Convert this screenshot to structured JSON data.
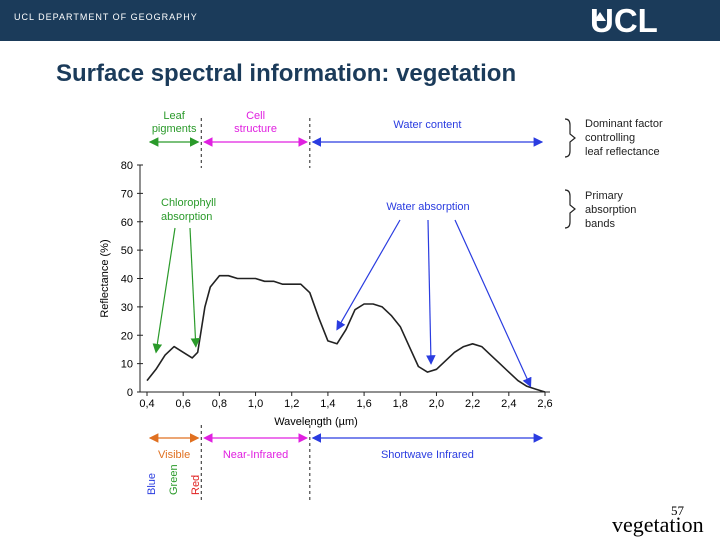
{
  "header": {
    "department": "UCL DEPARTMENT OF GEOGRAPHY",
    "logo": "UCL"
  },
  "title": "Surface spectral information: vegetation",
  "footer": {
    "page_number": "57",
    "word": "vegetation"
  },
  "colors": {
    "header_bg": "#1b3b5a",
    "green": "#2a9a2a",
    "magenta": "#e020e0",
    "blue": "#2a3ce0",
    "orange": "#e07020",
    "red": "#e02020",
    "curve": "#222222"
  },
  "chart_data": {
    "type": "line",
    "title": "",
    "xlabel": "Wavelength (µm)",
    "ylabel": "Reflectance (%)",
    "xlim": [
      0.4,
      2.6
    ],
    "ylim": [
      0,
      80
    ],
    "x_ticks": [
      "0,4",
      "0,6",
      "0,8",
      "1,0",
      "1,2",
      "1,4",
      "1,6",
      "1,8",
      "2,0",
      "2,2",
      "2,4",
      "2,6"
    ],
    "y_ticks": [
      "0",
      "10",
      "20",
      "30",
      "40",
      "50",
      "60",
      "70",
      "80"
    ],
    "series": [
      {
        "name": "Vegetation reflectance",
        "x": [
          0.4,
          0.45,
          0.5,
          0.55,
          0.6,
          0.65,
          0.68,
          0.7,
          0.72,
          0.75,
          0.8,
          0.85,
          0.9,
          1.0,
          1.05,
          1.1,
          1.15,
          1.2,
          1.25,
          1.3,
          1.35,
          1.4,
          1.45,
          1.5,
          1.55,
          1.6,
          1.65,
          1.7,
          1.75,
          1.8,
          1.85,
          1.9,
          1.95,
          2.0,
          2.05,
          2.1,
          2.15,
          2.2,
          2.25,
          2.3,
          2.35,
          2.4,
          2.45,
          2.5,
          2.55,
          2.6
        ],
        "y": [
          4,
          8,
          13,
          16,
          14,
          12,
          14,
          22,
          30,
          37,
          41,
          41,
          40,
          40,
          39,
          39,
          38,
          38,
          38,
          35,
          26,
          18,
          17,
          22,
          29,
          31,
          31,
          30,
          27,
          23,
          16,
          9,
          7,
          8,
          11,
          14,
          16,
          17,
          16,
          13,
          10,
          7,
          4,
          2,
          1,
          0
        ]
      }
    ],
    "top_regions": [
      {
        "label": "Leaf\npigments",
        "from": 0.4,
        "to": 0.7,
        "color": "green"
      },
      {
        "label": "Cell\nstructure",
        "from": 0.7,
        "to": 1.3,
        "color": "magenta"
      },
      {
        "label": "Water content",
        "from": 1.3,
        "to": 2.6,
        "color": "blue"
      }
    ],
    "bottom_regions": [
      {
        "label": "Visible",
        "from": 0.4,
        "to": 0.7,
        "color": "orange"
      },
      {
        "label": "Near-Infrared",
        "from": 0.7,
        "to": 1.3,
        "color": "magenta"
      },
      {
        "label": "Shortwave Infrared",
        "from": 1.3,
        "to": 2.6,
        "color": "blue"
      }
    ],
    "visible_bands": [
      {
        "label": "Blue",
        "color": "blue"
      },
      {
        "label": "Green",
        "color": "green"
      },
      {
        "label": "Red",
        "color": "red"
      }
    ],
    "legend": [
      {
        "label": "Dominant factor\ncontrolling\nleaf reflectance"
      },
      {
        "label": "Primary\nabsorption\nbands"
      }
    ],
    "annotations": [
      {
        "label": "Chlorophyll\nabsorption",
        "color": "green",
        "targets": [
          [
            0.45,
            14
          ],
          [
            0.67,
            16
          ]
        ]
      },
      {
        "label": "Water absorption",
        "color": "blue",
        "targets": [
          [
            1.45,
            22
          ],
          [
            1.97,
            10
          ],
          [
            2.52,
            2
          ]
        ]
      }
    ]
  }
}
